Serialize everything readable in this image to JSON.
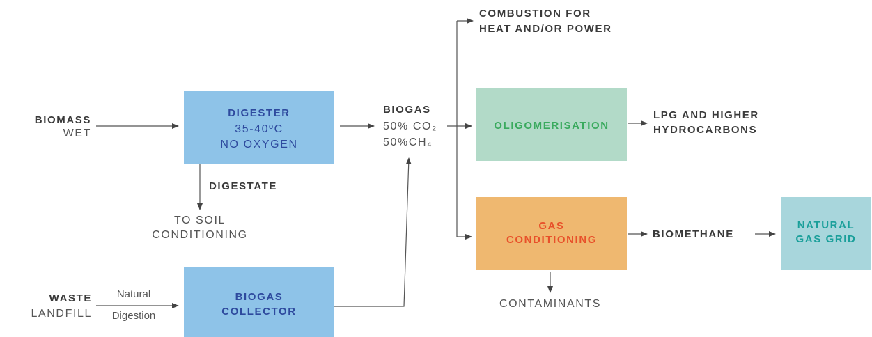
{
  "inputs": [
    {
      "label": "BIOMASS",
      "sub": "WET"
    },
    {
      "label": "WASTE",
      "sub": "LANDFILL",
      "arrow_top": "Natural",
      "arrow_bottom": "Digestion"
    }
  ],
  "digester": {
    "title": "DIGESTER",
    "lines": [
      "35-40ºC",
      "NO OXYGEN"
    ]
  },
  "digestate": {
    "label": "DIGESTATE",
    "output": [
      "TO SOIL",
      "CONDITIONING"
    ]
  },
  "collector": {
    "lines": [
      "BIOGAS",
      "COLLECTOR"
    ]
  },
  "biogas": {
    "label": "BIOGAS",
    "lines": [
      "50% CO₂",
      "50%CH₄"
    ]
  },
  "combustion": [
    "COMBUSTION FOR",
    "HEAT AND/OR POWER"
  ],
  "oligomerisation": {
    "title": "OLIGOMERISATION",
    "output": [
      "LPG AND HIGHER",
      "HYDROCARBONS"
    ]
  },
  "gas_conditioning": {
    "lines": [
      "GAS",
      "CONDITIONING"
    ],
    "waste": "CONTAMINANTS"
  },
  "biomethane": "BIOMETHANE",
  "grid": [
    "NATURAL",
    "GAS GRID"
  ]
}
